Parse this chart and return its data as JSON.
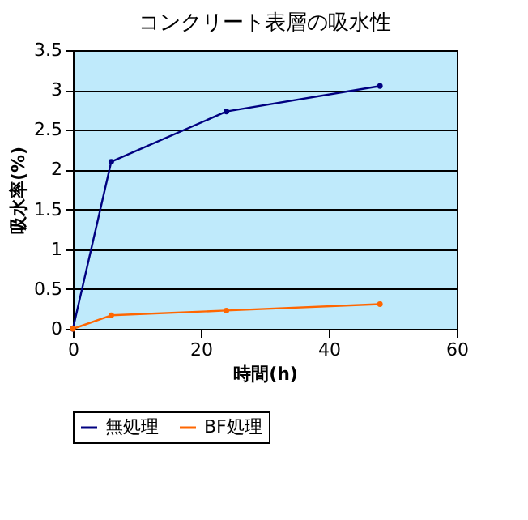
{
  "chart_data": {
    "type": "line",
    "title": "コンクリート表層の吸水性",
    "xlabel": "時間(h)",
    "ylabel": "吸水率(%)",
    "x": [
      0,
      6,
      24,
      48
    ],
    "series": [
      {
        "name": "無処理",
        "color": "#000080",
        "values": [
          0,
          2.1,
          2.73,
          3.05
        ]
      },
      {
        "name": "BF処理",
        "color": "#ff6600",
        "values": [
          0,
          0.17,
          0.23,
          0.31
        ]
      }
    ],
    "xlim": [
      0,
      60
    ],
    "xticks": [
      0,
      20,
      40,
      60
    ],
    "ylim": [
      0,
      3.5
    ],
    "yticks": [
      0,
      0.5,
      1,
      1.5,
      2,
      2.5,
      3,
      3.5
    ],
    "grid": "y",
    "legend": "bottom",
    "marker": "circle",
    "line_style": "solid"
  }
}
